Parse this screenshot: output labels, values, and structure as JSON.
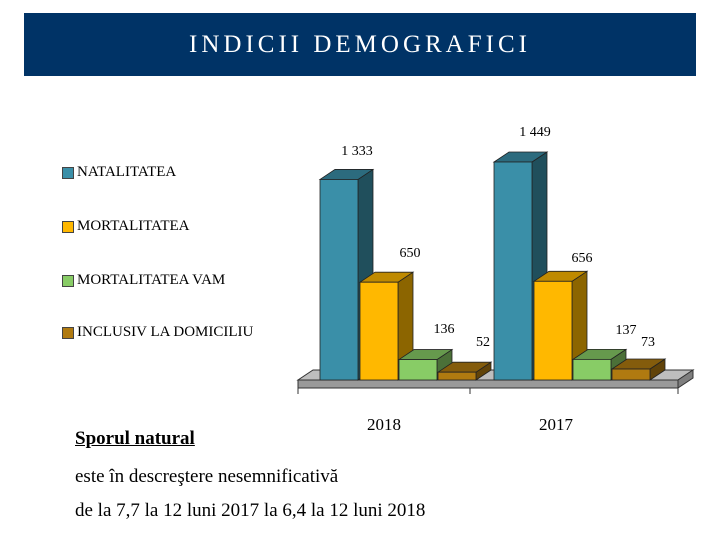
{
  "header": {
    "title": "INDICII DEMOGRAFICI"
  },
  "chart_data": {
    "type": "bar",
    "categories": [
      "2018",
      "2017"
    ],
    "series": [
      {
        "name": "NATALITATEA",
        "values": [
          1333,
          1449
        ],
        "labels": [
          "1 333",
          "1 449"
        ],
        "color": "#3A8FA8"
      },
      {
        "name": "MORTALITATEA",
        "values": [
          650,
          656
        ],
        "labels": [
          "650",
          "656"
        ],
        "color": "#FFB800"
      },
      {
        "name": "MORTALITATEA VAM",
        "values": [
          136,
          137
        ],
        "labels": [
          "136",
          "137"
        ],
        "color": "#88CC66"
      },
      {
        "name": "INCLUSIV LA DOMICILIU",
        "values": [
          52,
          73
        ],
        "labels": [
          "52",
          "73"
        ],
        "color": "#B07A10"
      }
    ],
    "legend_position": "left",
    "three_d": true
  },
  "footer": {
    "heading": "Sporul natural",
    "line1": "este în descreştere nesemnificativă",
    "line2": "de la 7,7 la 12 luni 2017 la 6,4 la 12 luni 2018"
  }
}
